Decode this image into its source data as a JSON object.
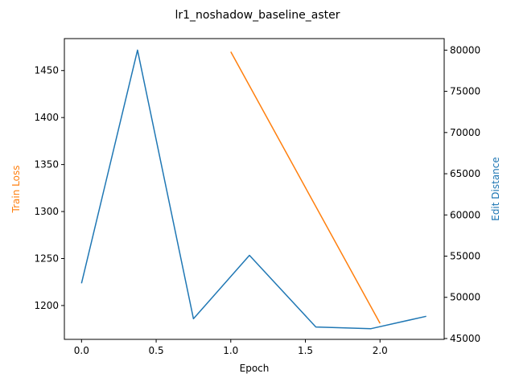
{
  "chart_data": {
    "type": "line",
    "title": "lr1_noshadow_baseline_aster",
    "xlabel": "Epoch",
    "ylabel_left": "Train Loss",
    "ylabel_right": "Edit Distance",
    "xlim": [
      -0.115,
      2.43
    ],
    "ylim_left": [
      1164,
      1484
    ],
    "ylim_right": [
      44900,
      81400
    ],
    "x_ticks": [
      0.0,
      0.5,
      1.0,
      1.5,
      2.0
    ],
    "x_tick_labels": [
      "0.0",
      "0.5",
      "1.0",
      "1.5",
      "2.0"
    ],
    "y_left_ticks": [
      1200,
      1250,
      1300,
      1350,
      1400,
      1450
    ],
    "y_left_tick_labels": [
      "1200",
      "1250",
      "1300",
      "1350",
      "1400",
      "1450"
    ],
    "y_right_ticks": [
      45000,
      50000,
      55000,
      60000,
      65000,
      70000,
      75000,
      80000
    ],
    "y_right_tick_labels": [
      "45000",
      "50000",
      "55000",
      "60000",
      "65000",
      "70000",
      "75000",
      "80000"
    ],
    "grid": false,
    "series": [
      {
        "axis": "left",
        "color": "#ff7f0e",
        "x": [
          1.0,
          2.0
        ],
        "y": [
          1470,
          1181
        ]
      },
      {
        "axis": "right",
        "color": "#1f77b4",
        "x": [
          0.0,
          0.375,
          0.75,
          1.125,
          1.57,
          1.94,
          2.31
        ],
        "y": [
          51700,
          80000,
          47400,
          55100,
          46400,
          46200,
          47700
        ]
      }
    ],
    "colors": {
      "left_axis_label": "#ff7f0e",
      "right_axis_label": "#1f77b4"
    }
  }
}
